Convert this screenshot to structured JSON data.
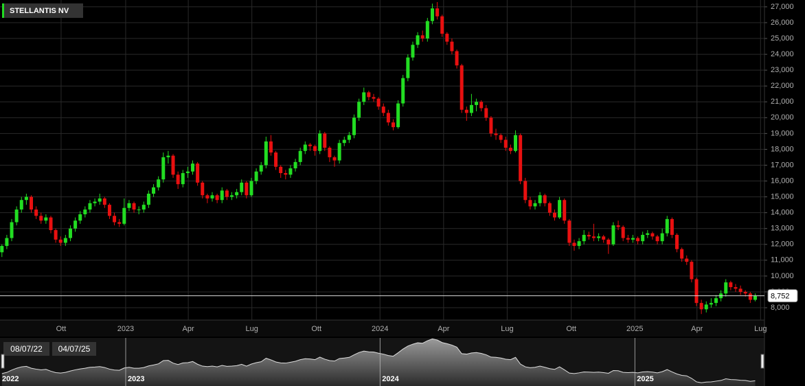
{
  "chart_data": {
    "type": "candlestick",
    "title": "STELLANTIS NV",
    "up_color": "#22dd22",
    "down_color": "#e81010",
    "grid": true,
    "xlim": [
      -0.39,
      155.9
    ],
    "ylim": [
      7.22,
      27.43
    ],
    "yticks": [
      {
        "value": 8,
        "label": "8,000"
      },
      {
        "value": 9,
        "label": "9,000"
      },
      {
        "value": 10,
        "label": "10,000"
      },
      {
        "value": 11,
        "label": "11,000"
      },
      {
        "value": 12,
        "label": "12,000"
      },
      {
        "value": 13,
        "label": "13,000"
      },
      {
        "value": 14,
        "label": "14,000"
      },
      {
        "value": 15,
        "label": "15,000"
      },
      {
        "value": 16,
        "label": "16,000"
      },
      {
        "value": 17,
        "label": "17,000"
      },
      {
        "value": 18,
        "label": "18,000"
      },
      {
        "value": 19,
        "label": "19,000"
      },
      {
        "value": 20,
        "label": "20,000"
      },
      {
        "value": 21,
        "label": "21,000"
      },
      {
        "value": 22,
        "label": "22,000"
      },
      {
        "value": 23,
        "label": "23,000"
      },
      {
        "value": 24,
        "label": "24,000"
      },
      {
        "value": 25,
        "label": "25,000"
      },
      {
        "value": 26,
        "label": "26,000"
      },
      {
        "value": 27,
        "label": "27,000"
      }
    ],
    "xticks": [
      {
        "value": 12.1,
        "label": "Ott"
      },
      {
        "value": 25.3,
        "label": "2023"
      },
      {
        "value": 38.1,
        "label": "Apr"
      },
      {
        "value": 51.1,
        "label": "Lug"
      },
      {
        "value": 64.3,
        "label": "Ott"
      },
      {
        "value": 77.3,
        "label": "2024"
      },
      {
        "value": 90.3,
        "label": "Apr"
      },
      {
        "value": 103.3,
        "label": "Lug"
      },
      {
        "value": 116.4,
        "label": "Ott"
      },
      {
        "value": 129.4,
        "label": "2025"
      },
      {
        "value": 142.1,
        "label": "Apr"
      },
      {
        "value": 155.1,
        "label": "Lug"
      }
    ],
    "last_price": {
      "value": 8.752,
      "label": "8,752"
    },
    "x": [
      0,
      1,
      2,
      3,
      4,
      5,
      6,
      7,
      8,
      9,
      10,
      11,
      12,
      13,
      14,
      15,
      16,
      17,
      18,
      19,
      20,
      21,
      22,
      23,
      24,
      25,
      26,
      27,
      28,
      29,
      30,
      31,
      32,
      33,
      34,
      35,
      36,
      37,
      38,
      39,
      40,
      41,
      42,
      43,
      44,
      45,
      46,
      47,
      48,
      49,
      50,
      51,
      52,
      53,
      54,
      55,
      56,
      57,
      58,
      59,
      60,
      61,
      62,
      63,
      64,
      65,
      66,
      67,
      68,
      69,
      70,
      71,
      72,
      73,
      74,
      75,
      76,
      77,
      78,
      79,
      80,
      81,
      82,
      83,
      84,
      85,
      86,
      87,
      88,
      89,
      90,
      91,
      92,
      93,
      94,
      95,
      96,
      97,
      98,
      99,
      100,
      101,
      102,
      103,
      104,
      105,
      106,
      107,
      108,
      109,
      110,
      111,
      112,
      113,
      114,
      115,
      116,
      117,
      118,
      119,
      120,
      121,
      122,
      123,
      124,
      125,
      126,
      127,
      128,
      129,
      130,
      131,
      132,
      133,
      134,
      135,
      136,
      137,
      138,
      139,
      140,
      141,
      142,
      143,
      144,
      145,
      146,
      147,
      148,
      149,
      150,
      151,
      152,
      153,
      154
    ],
    "candles": [
      [
        11.5,
        12.0,
        11.2,
        11.9
      ],
      [
        11.9,
        12.6,
        11.7,
        12.4
      ],
      [
        12.4,
        13.6,
        12.2,
        13.4
      ],
      [
        13.4,
        14.4,
        13.2,
        14.2
      ],
      [
        14.2,
        15.0,
        14.0,
        14.8
      ],
      [
        14.8,
        15.2,
        14.5,
        15.0
      ],
      [
        15.0,
        15.1,
        14.0,
        14.2
      ],
      [
        14.2,
        14.4,
        13.6,
        13.8
      ],
      [
        13.8,
        14.0,
        13.3,
        13.5
      ],
      [
        13.5,
        13.9,
        13.3,
        13.7
      ],
      [
        13.7,
        13.8,
        12.7,
        12.9
      ],
      [
        12.9,
        13.0,
        12.1,
        12.3
      ],
      [
        12.3,
        12.5,
        11.9,
        12.1
      ],
      [
        12.1,
        12.6,
        11.9,
        12.4
      ],
      [
        12.4,
        13.2,
        12.2,
        13.0
      ],
      [
        13.0,
        13.7,
        12.8,
        13.5
      ],
      [
        13.5,
        14.1,
        13.3,
        13.9
      ],
      [
        13.9,
        14.4,
        13.7,
        14.2
      ],
      [
        14.2,
        14.8,
        14.0,
        14.6
      ],
      [
        14.6,
        14.9,
        14.4,
        14.7
      ],
      [
        14.7,
        15.2,
        14.5,
        14.9
      ],
      [
        14.9,
        15.0,
        14.3,
        14.5
      ],
      [
        14.5,
        14.6,
        13.6,
        13.8
      ],
      [
        13.8,
        14.0,
        13.2,
        13.4
      ],
      [
        13.4,
        13.6,
        13.1,
        13.3
      ],
      [
        13.3,
        14.9,
        13.2,
        14.3
      ],
      [
        14.3,
        14.8,
        14.1,
        14.6
      ],
      [
        14.6,
        14.7,
        14.0,
        14.2
      ],
      [
        14.2,
        14.4,
        13.9,
        14.2
      ],
      [
        14.2,
        14.7,
        14.0,
        14.5
      ],
      [
        14.5,
        15.4,
        14.3,
        15.2
      ],
      [
        15.2,
        15.8,
        15.0,
        15.6
      ],
      [
        15.6,
        16.3,
        15.4,
        16.1
      ],
      [
        16.1,
        17.8,
        15.9,
        17.5
      ],
      [
        17.5,
        17.9,
        17.1,
        17.6
      ],
      [
        17.6,
        17.7,
        16.2,
        16.4
      ],
      [
        16.4,
        16.6,
        15.5,
        15.8
      ],
      [
        15.8,
        16.7,
        15.6,
        16.5
      ],
      [
        16.5,
        16.9,
        16.2,
        16.6
      ],
      [
        16.6,
        17.3,
        16.4,
        17.1
      ],
      [
        17.1,
        17.2,
        15.7,
        15.9
      ],
      [
        15.9,
        16.0,
        14.9,
        15.1
      ],
      [
        15.1,
        15.2,
        14.6,
        14.9
      ],
      [
        14.9,
        15.3,
        14.7,
        15.1
      ],
      [
        15.1,
        15.2,
        14.6,
        14.8
      ],
      [
        14.8,
        15.6,
        14.6,
        15.4
      ],
      [
        15.4,
        15.5,
        14.8,
        15.0
      ],
      [
        15.0,
        15.3,
        14.8,
        15.1
      ],
      [
        15.1,
        15.5,
        14.9,
        15.3
      ],
      [
        15.3,
        16.1,
        15.1,
        15.9
      ],
      [
        15.9,
        16.0,
        14.9,
        15.1
      ],
      [
        15.1,
        16.2,
        15.0,
        16.0
      ],
      [
        16.0,
        16.8,
        15.8,
        16.6
      ],
      [
        16.6,
        17.2,
        16.4,
        17.0
      ],
      [
        17.0,
        18.8,
        16.8,
        18.5
      ],
      [
        18.5,
        18.9,
        17.6,
        17.8
      ],
      [
        17.8,
        17.9,
        16.7,
        16.9
      ],
      [
        16.9,
        17.0,
        16.2,
        16.5
      ],
      [
        16.5,
        16.7,
        16.1,
        16.4
      ],
      [
        16.4,
        17.0,
        16.2,
        16.8
      ],
      [
        16.8,
        17.4,
        16.6,
        17.2
      ],
      [
        17.2,
        18.1,
        17.0,
        17.9
      ],
      [
        17.9,
        18.5,
        17.7,
        18.3
      ],
      [
        18.3,
        18.4,
        17.9,
        18.2
      ],
      [
        18.2,
        18.3,
        17.6,
        17.9
      ],
      [
        17.9,
        19.2,
        17.7,
        19.0
      ],
      [
        19.0,
        19.1,
        17.9,
        18.1
      ],
      [
        18.1,
        18.2,
        17.2,
        17.5
      ],
      [
        17.5,
        17.6,
        16.9,
        17.3
      ],
      [
        17.3,
        18.6,
        17.1,
        18.4
      ],
      [
        18.4,
        18.8,
        18.2,
        18.6
      ],
      [
        18.6,
        19.1,
        18.4,
        18.9
      ],
      [
        18.9,
        20.2,
        18.7,
        20.0
      ],
      [
        20.0,
        21.2,
        19.8,
        21.0
      ],
      [
        21.0,
        21.9,
        20.8,
        21.6
      ],
      [
        21.6,
        21.7,
        21.1,
        21.3
      ],
      [
        21.3,
        21.5,
        21.0,
        21.2
      ],
      [
        21.2,
        21.3,
        20.5,
        20.7
      ],
      [
        20.7,
        20.9,
        20.1,
        20.3
      ],
      [
        20.3,
        20.5,
        19.5,
        19.7
      ],
      [
        19.7,
        19.9,
        19.2,
        19.4
      ],
      [
        19.4,
        21.1,
        19.3,
        20.9
      ],
      [
        20.9,
        22.7,
        20.7,
        22.5
      ],
      [
        22.5,
        24.0,
        22.3,
        23.8
      ],
      [
        23.8,
        24.8,
        23.6,
        24.6
      ],
      [
        24.6,
        25.4,
        24.4,
        25.2
      ],
      [
        25.2,
        25.5,
        24.8,
        25.0
      ],
      [
        25.0,
        26.3,
        24.8,
        26.1
      ],
      [
        26.1,
        27.2,
        25.9,
        26.9
      ],
      [
        26.9,
        27.3,
        26.2,
        26.4
      ],
      [
        26.4,
        26.5,
        25.1,
        25.3
      ],
      [
        25.3,
        25.4,
        24.6,
        24.8
      ],
      [
        24.8,
        25.0,
        24.0,
        24.2
      ],
      [
        24.2,
        24.3,
        23.1,
        23.3
      ],
      [
        23.3,
        23.4,
        20.3,
        20.5
      ],
      [
        20.5,
        20.7,
        19.8,
        20.3
      ],
      [
        20.3,
        21.5,
        20.1,
        20.8
      ],
      [
        20.8,
        21.2,
        20.4,
        21.0
      ],
      [
        21.0,
        21.1,
        20.4,
        20.6
      ],
      [
        20.6,
        20.8,
        19.8,
        20.0
      ],
      [
        20.0,
        20.1,
        18.8,
        19.0
      ],
      [
        19.0,
        19.3,
        18.6,
        18.9
      ],
      [
        18.9,
        19.0,
        18.4,
        18.6
      ],
      [
        18.6,
        18.8,
        17.9,
        18.1
      ],
      [
        18.1,
        18.3,
        17.7,
        17.9
      ],
      [
        17.9,
        19.2,
        17.8,
        18.9
      ],
      [
        18.9,
        19.0,
        15.8,
        16.0
      ],
      [
        16.0,
        16.2,
        14.6,
        14.8
      ],
      [
        14.8,
        15.0,
        14.2,
        14.4
      ],
      [
        14.4,
        14.8,
        14.2,
        14.6
      ],
      [
        14.6,
        15.3,
        14.4,
        15.1
      ],
      [
        15.1,
        15.2,
        14.4,
        14.6
      ],
      [
        14.6,
        14.7,
        13.8,
        14.0
      ],
      [
        14.0,
        14.2,
        13.5,
        13.7
      ],
      [
        13.7,
        15.0,
        13.6,
        14.8
      ],
      [
        14.8,
        14.9,
        13.3,
        13.5
      ],
      [
        13.5,
        13.6,
        11.9,
        12.1
      ],
      [
        12.1,
        12.3,
        11.6,
        11.9
      ],
      [
        11.9,
        12.4,
        11.7,
        12.2
      ],
      [
        12.2,
        12.9,
        12.0,
        12.6
      ],
      [
        12.6,
        12.8,
        12.3,
        12.5
      ],
      [
        12.5,
        13.3,
        12.2,
        12.4
      ],
      [
        12.4,
        12.7,
        12.2,
        12.5
      ],
      [
        12.5,
        12.6,
        12.1,
        12.3
      ],
      [
        12.3,
        12.4,
        11.4,
        12.0
      ],
      [
        12.0,
        13.4,
        11.9,
        13.2
      ],
      [
        13.2,
        13.5,
        12.9,
        13.1
      ],
      [
        13.1,
        13.2,
        12.2,
        12.4
      ],
      [
        12.4,
        12.6,
        12.1,
        12.3
      ],
      [
        12.3,
        12.6,
        12.1,
        12.4
      ],
      [
        12.4,
        12.5,
        12.0,
        12.2
      ],
      [
        12.2,
        12.8,
        12.0,
        12.6
      ],
      [
        12.6,
        12.9,
        12.4,
        12.7
      ],
      [
        12.7,
        12.8,
        12.3,
        12.5
      ],
      [
        12.5,
        12.6,
        12.0,
        12.2
      ],
      [
        12.2,
        13.0,
        12.0,
        12.7
      ],
      [
        12.7,
        13.8,
        12.5,
        13.6
      ],
      [
        13.6,
        13.7,
        12.4,
        12.6
      ],
      [
        12.6,
        12.7,
        11.5,
        11.7
      ],
      [
        11.7,
        11.8,
        10.9,
        11.1
      ],
      [
        11.1,
        11.3,
        10.7,
        10.9
      ],
      [
        10.9,
        11.0,
        9.6,
        9.8
      ],
      [
        9.8,
        9.9,
        8.1,
        8.3
      ],
      [
        8.3,
        8.5,
        7.6,
        7.9
      ],
      [
        7.9,
        8.4,
        7.7,
        8.2
      ],
      [
        8.2,
        8.6,
        8.0,
        8.3
      ],
      [
        8.3,
        8.8,
        8.1,
        8.6
      ],
      [
        8.6,
        9.1,
        8.4,
        8.9
      ],
      [
        8.9,
        9.8,
        8.7,
        9.6
      ],
      [
        9.6,
        9.7,
        9.1,
        9.3
      ],
      [
        9.3,
        9.5,
        9.0,
        9.2
      ],
      [
        9.2,
        9.4,
        8.8,
        9.0
      ],
      [
        9.0,
        9.1,
        8.7,
        8.9
      ],
      [
        8.9,
        9.0,
        8.3,
        8.5
      ],
      [
        8.5,
        8.9,
        8.4,
        8.75
      ]
    ],
    "navigator": {
      "xlim": [
        -0.4,
        155.9
      ],
      "ylim": [
        6.5,
        27.3
      ],
      "xticks": [
        {
          "value": -0.4,
          "label": "2022"
        },
        {
          "value": 25.3,
          "label": "2023"
        },
        {
          "value": 77.3,
          "label": "2024"
        },
        {
          "value": 129.4,
          "label": "2025"
        }
      ],
      "range_labels": [
        "08/07/22",
        "04/07/25"
      ]
    }
  }
}
